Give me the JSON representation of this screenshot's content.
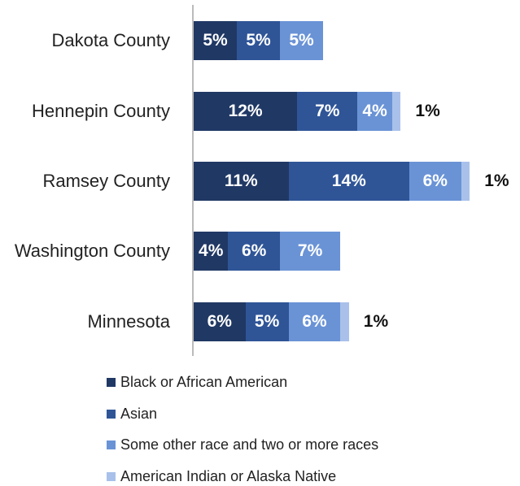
{
  "chart_data": {
    "type": "stacked-bar-horizontal",
    "categories": [
      "Dakota County",
      "Hennepin County",
      "Ramsey County",
      "Washington County",
      "Minnesota"
    ],
    "series": [
      {
        "name": "Black or African American",
        "color": "#203864",
        "values": [
          5,
          12,
          11,
          4,
          6
        ],
        "value_labels": [
          "5%",
          "12%",
          "11%",
          "4%",
          "6%"
        ]
      },
      {
        "name": "Asian",
        "color": "#2f5597",
        "values": [
          5,
          7,
          14,
          6,
          5
        ],
        "value_labels": [
          "5%",
          "7%",
          "14%",
          "6%",
          "5%"
        ]
      },
      {
        "name": "Some other race and two or more races",
        "color": "#6a93d6",
        "values": [
          5,
          4,
          6,
          7,
          6
        ],
        "value_labels": [
          "5%",
          "4%",
          "6%",
          "7%",
          "6%"
        ]
      },
      {
        "name": "American Indian or Alaska Native",
        "color": "#a9c1ea",
        "values": [
          null,
          1,
          1,
          null,
          1
        ],
        "value_labels": [
          null,
          "1%",
          "1%",
          null,
          "1%"
        ]
      }
    ],
    "legend": "bottom"
  }
}
